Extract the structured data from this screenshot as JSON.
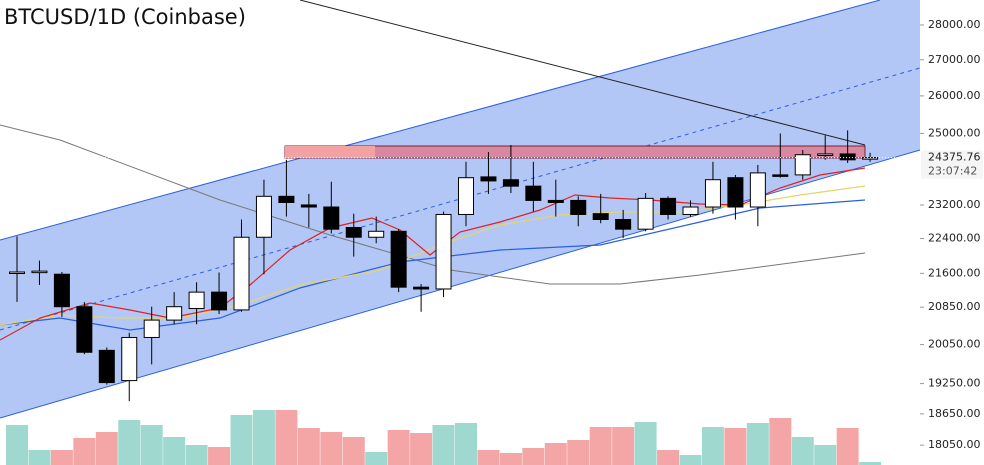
{
  "chart_data": {
    "type": "candlestick",
    "title": "BTCUSD/1D (Coinbase)",
    "log_scale": true,
    "ylim": [
      17680,
      28740
    ],
    "yticks": [
      {
        "value": 28000,
        "label": "28000.00"
      },
      {
        "value": 27000,
        "label": "27000.00"
      },
      {
        "value": 26000,
        "label": "26000.00"
      },
      {
        "value": 25000,
        "label": "25000.00"
      },
      {
        "value": 23200,
        "label": "23200.00"
      },
      {
        "value": 22400,
        "label": "22400.00"
      },
      {
        "value": 21600,
        "label": "21600.00"
      },
      {
        "value": 20850,
        "label": "20850.00"
      },
      {
        "value": 20050,
        "label": "20050.00"
      },
      {
        "value": 19250,
        "label": "19250.00"
      },
      {
        "value": 18650,
        "label": "18650.00"
      },
      {
        "value": 18050,
        "label": "18050.00"
      }
    ],
    "last_price": 24375.76,
    "countdown": "23:07:42",
    "up_color": "#ffffff",
    "down_color": "#000000",
    "volume_up_color": "#9fd8cf",
    "volume_down_color": "#f4a6a6",
    "open": [
      21630,
      21630,
      21580,
      20860,
      19930,
      19310,
      20200,
      20570,
      20820,
      21180,
      20790,
      22430,
      23410,
      23200,
      23150,
      22660,
      22430,
      22570,
      21290,
      21250,
      22970,
      23890,
      23820,
      23660,
      23310,
      23310,
      22990,
      22850,
      22620,
      23360,
      22970,
      23150,
      23870,
      23150,
      23940,
      23940,
      24450,
      24470,
      24350
    ],
    "high": [
      22450,
      21890,
      21630,
      20960,
      19990,
      20300,
      20860,
      21180,
      21400,
      21620,
      22850,
      23820,
      24320,
      23470,
      23770,
      22990,
      22920,
      22620,
      21360,
      23040,
      24270,
      24520,
      24700,
      24270,
      23820,
      23410,
      23470,
      23080,
      23490,
      23410,
      23310,
      24270,
      23940,
      24190,
      25000,
      24570,
      24950,
      25080,
      24500
    ],
    "low": [
      20965,
      21340,
      20640,
      19850,
      19230,
      18900,
      19640,
      20480,
      20480,
      20700,
      20750,
      21580,
      22920,
      22660,
      22520,
      21980,
      22290,
      21180,
      20750,
      21070,
      22690,
      23470,
      23490,
      23040,
      22920,
      22690,
      22760,
      22410,
      22570,
      22850,
      22920,
      22990,
      22850,
      22690,
      23870,
      23820,
      24320,
      24240,
      24270
    ],
    "close": [
      21630,
      21650,
      20860,
      19890,
      19270,
      20200,
      20570,
      20860,
      21180,
      20790,
      22430,
      23410,
      23260,
      23150,
      22620,
      22430,
      22570,
      21290,
      21250,
      22970,
      23870,
      23790,
      23660,
      23310,
      23260,
      22970,
      22850,
      22620,
      23360,
      22970,
      23150,
      23820,
      23150,
      23990,
      23920,
      24450,
      24470,
      24320,
      24375.76
    ],
    "volume": [
      40,
      15,
      15,
      27,
      33,
      45,
      40,
      28,
      20,
      18,
      50,
      55,
      55,
      37,
      33,
      28,
      13,
      35,
      32,
      40,
      42,
      15,
      12,
      17,
      22,
      25,
      38,
      38,
      43,
      15,
      10,
      38,
      37,
      42,
      47,
      28,
      20,
      37,
      3
    ]
  }
}
